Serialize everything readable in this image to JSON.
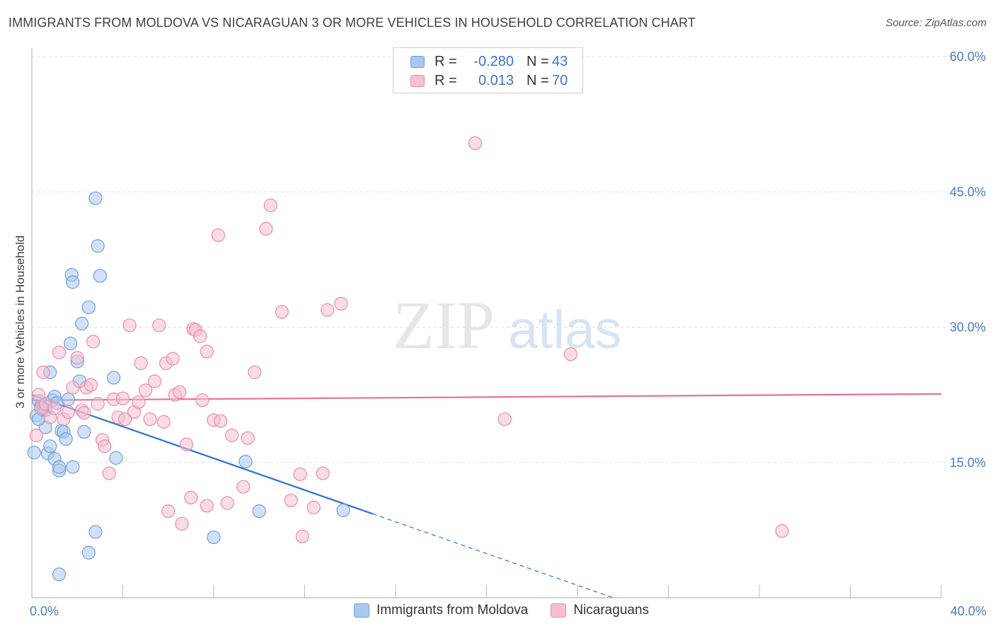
{
  "title": "IMMIGRANTS FROM MOLDOVA VS NICARAGUAN 3 OR MORE VEHICLES IN HOUSEHOLD CORRELATION CHART",
  "source": "Source: ZipAtlas.com",
  "watermark": {
    "zip": "ZIP",
    "atlas": "atlas"
  },
  "legend": {
    "rows": [
      {
        "r_label": "R =",
        "r_value": "-0.280",
        "n_label": "N =",
        "n_value": "43"
      },
      {
        "r_label": "R =",
        "r_value": "0.013",
        "n_label": "N =",
        "n_value": "70"
      }
    ]
  },
  "colors": {
    "blue_fill": "#a9c8f0",
    "blue_stroke": "#6fa0dc",
    "blue_line": "#2f6fcf",
    "pink_fill": "#f6bfd0",
    "pink_stroke": "#e98cab",
    "pink_line": "#e3709a",
    "grid": "#dddddd",
    "tick_text": "#4a7cc9"
  },
  "chart_data": {
    "type": "scatter",
    "title": "IMMIGRANTS FROM MOLDOVA VS NICARAGUAN 3 OR MORE VEHICLES IN HOUSEHOLD CORRELATION CHART",
    "xlabel": "",
    "ylabel": "3 or more Vehicles in Household",
    "xlim": [
      0,
      40
    ],
    "ylim": [
      0,
      60
    ],
    "x_tick_labels": [
      {
        "x": 0,
        "label": "0.0%"
      },
      {
        "x": 40,
        "label": "40.0%"
      }
    ],
    "y_tick_labels": [
      {
        "y": 15,
        "label": "15.0%"
      },
      {
        "y": 30,
        "label": "30.0%"
      },
      {
        "y": 45,
        "label": "45.0%"
      },
      {
        "y": 60,
        "label": "60.0%"
      }
    ],
    "series": [
      {
        "name": "Immigrants from Moldova",
        "color": "blue",
        "trend": {
          "x0": 0,
          "y0": 22.5,
          "x1": 15,
          "y1": 9.3,
          "dash_x1": 40
        },
        "points": [
          [
            0.1,
            16.1
          ],
          [
            0.2,
            20.2
          ],
          [
            0.3,
            21.8
          ],
          [
            0.4,
            21.2
          ],
          [
            0.5,
            20.8
          ],
          [
            0.6,
            18.9
          ],
          [
            0.7,
            16.0
          ],
          [
            0.8,
            16.8
          ],
          [
            0.9,
            21.9
          ],
          [
            1.0,
            22.3
          ],
          [
            1.1,
            21.6
          ],
          [
            1.2,
            14.1
          ],
          [
            1.3,
            18.5
          ],
          [
            1.4,
            18.4
          ],
          [
            1.5,
            17.6
          ],
          [
            1.6,
            22.0
          ],
          [
            1.7,
            28.2
          ],
          [
            1.75,
            35.8
          ],
          [
            1.8,
            35.0
          ],
          [
            2.0,
            26.2
          ],
          [
            2.1,
            24.0
          ],
          [
            2.2,
            30.4
          ],
          [
            2.3,
            18.4
          ],
          [
            2.5,
            32.2
          ],
          [
            2.8,
            44.3
          ],
          [
            2.9,
            39.0
          ],
          [
            3.0,
            35.7
          ],
          [
            3.6,
            24.4
          ],
          [
            3.7,
            15.5
          ],
          [
            0.8,
            25.0
          ],
          [
            1.0,
            15.4
          ],
          [
            1.2,
            14.5
          ],
          [
            0.5,
            21.0
          ],
          [
            0.3,
            19.8
          ],
          [
            2.8,
            7.3
          ],
          [
            2.5,
            5.0
          ],
          [
            1.2,
            2.6
          ],
          [
            8.0,
            6.7
          ],
          [
            9.4,
            15.1
          ],
          [
            10.0,
            9.6
          ],
          [
            13.7,
            9.7
          ],
          [
            0.6,
            20.8
          ],
          [
            1.8,
            14.5
          ]
        ]
      },
      {
        "name": "Nicaraguans",
        "color": "pink",
        "trend": {
          "x0": 0,
          "y0": 21.9,
          "x1": 40,
          "y1": 22.6
        },
        "points": [
          [
            0.2,
            18.0
          ],
          [
            0.3,
            22.5
          ],
          [
            0.4,
            21.0
          ],
          [
            0.5,
            25.0
          ],
          [
            0.6,
            21.5
          ],
          [
            0.8,
            20.0
          ],
          [
            1.0,
            21.0
          ],
          [
            1.2,
            27.2
          ],
          [
            1.4,
            19.8
          ],
          [
            1.6,
            20.6
          ],
          [
            1.8,
            23.3
          ],
          [
            2.0,
            26.6
          ],
          [
            2.2,
            20.8
          ],
          [
            2.3,
            20.5
          ],
          [
            2.4,
            23.3
          ],
          [
            2.6,
            23.6
          ],
          [
            2.7,
            28.4
          ],
          [
            2.9,
            21.5
          ],
          [
            3.1,
            17.5
          ],
          [
            3.2,
            16.8
          ],
          [
            3.4,
            13.8
          ],
          [
            3.6,
            22.0
          ],
          [
            3.8,
            20.0
          ],
          [
            4.0,
            22.1
          ],
          [
            4.1,
            19.8
          ],
          [
            4.3,
            30.2
          ],
          [
            4.5,
            20.6
          ],
          [
            4.7,
            21.7
          ],
          [
            4.8,
            26.0
          ],
          [
            5.0,
            23.0
          ],
          [
            5.2,
            19.8
          ],
          [
            5.4,
            24.0
          ],
          [
            5.6,
            30.2
          ],
          [
            5.8,
            19.5
          ],
          [
            5.9,
            26.0
          ],
          [
            6.0,
            9.6
          ],
          [
            6.2,
            26.5
          ],
          [
            6.3,
            22.5
          ],
          [
            6.5,
            22.8
          ],
          [
            6.6,
            8.2
          ],
          [
            6.8,
            17.0
          ],
          [
            7.0,
            11.1
          ],
          [
            7.1,
            29.8
          ],
          [
            7.2,
            29.7
          ],
          [
            7.4,
            29.0
          ],
          [
            7.5,
            21.9
          ],
          [
            7.7,
            10.2
          ],
          [
            7.7,
            27.3
          ],
          [
            8.0,
            19.7
          ],
          [
            8.2,
            40.2
          ],
          [
            8.3,
            19.6
          ],
          [
            8.6,
            10.5
          ],
          [
            8.8,
            18.0
          ],
          [
            9.3,
            12.3
          ],
          [
            9.5,
            17.7
          ],
          [
            9.8,
            25.0
          ],
          [
            10.3,
            40.9
          ],
          [
            10.5,
            43.5
          ],
          [
            11.0,
            31.7
          ],
          [
            11.4,
            10.8
          ],
          [
            11.8,
            13.7
          ],
          [
            11.9,
            6.8
          ],
          [
            12.4,
            10.0
          ],
          [
            12.8,
            13.8
          ],
          [
            13.0,
            31.9
          ],
          [
            13.6,
            32.6
          ],
          [
            19.5,
            50.4
          ],
          [
            20.8,
            19.8
          ],
          [
            23.7,
            27.0
          ],
          [
            33.0,
            7.4
          ]
        ]
      }
    ]
  },
  "bottom_legend": {
    "items": [
      {
        "label": "Immigrants from Moldova"
      },
      {
        "label": "Nicaraguans"
      }
    ]
  }
}
